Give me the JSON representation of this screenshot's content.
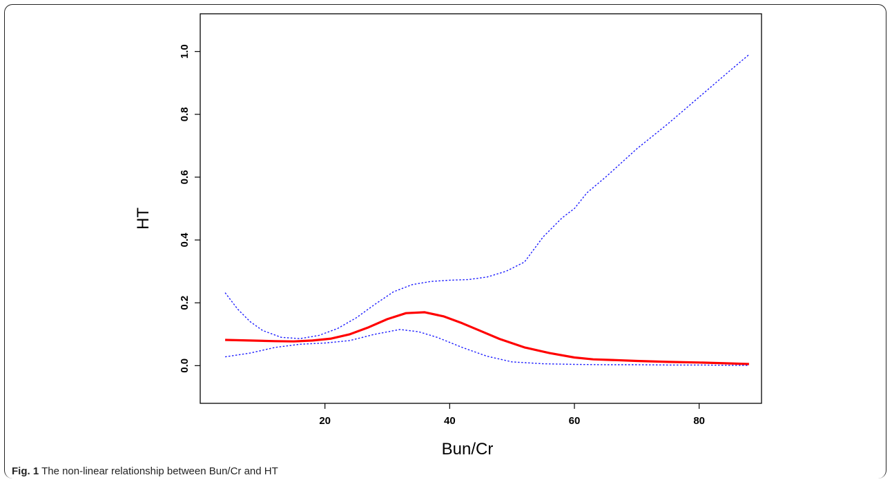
{
  "figure": {
    "caption_label": "Fig. 1",
    "caption_text": "The non-linear relationship between Bun/Cr and HT"
  },
  "chart_data": {
    "type": "line",
    "xlabel": "Bun/Cr",
    "ylabel": "HT",
    "xlim": [
      0,
      90
    ],
    "ylim": [
      -0.12,
      1.12
    ],
    "xticks": [
      20,
      40,
      60,
      80
    ],
    "yticks": [
      0.0,
      0.2,
      0.4,
      0.6,
      0.8,
      1.0
    ],
    "grid": false,
    "series": [
      {
        "color": "#ff0000",
        "style": "solid",
        "x": [
          4,
          8,
          12,
          15,
          18,
          21,
          24,
          27,
          30,
          33,
          36,
          39,
          42,
          45,
          48,
          52,
          56,
          60,
          63,
          66,
          70,
          75,
          80,
          85,
          88
        ],
        "y": [
          0.082,
          0.08,
          0.078,
          0.077,
          0.08,
          0.086,
          0.1,
          0.122,
          0.148,
          0.167,
          0.17,
          0.157,
          0.135,
          0.11,
          0.085,
          0.058,
          0.04,
          0.026,
          0.02,
          0.018,
          0.015,
          0.012,
          0.01,
          0.007,
          0.005
        ]
      },
      {
        "color": "#1a1aff",
        "style": "dotted",
        "x": [
          4,
          6,
          8,
          10,
          13,
          16,
          19,
          22,
          25,
          28,
          31,
          34,
          37,
          40,
          43,
          46,
          49,
          52,
          55,
          58,
          60,
          62,
          65,
          70,
          75,
          80,
          85,
          88
        ],
        "y": [
          0.232,
          0.18,
          0.14,
          0.112,
          0.09,
          0.086,
          0.096,
          0.118,
          0.152,
          0.195,
          0.235,
          0.258,
          0.268,
          0.272,
          0.274,
          0.282,
          0.3,
          0.33,
          0.41,
          0.47,
          0.5,
          0.55,
          0.6,
          0.69,
          0.77,
          0.855,
          0.94,
          0.99
        ]
      },
      {
        "color": "#1a1aff",
        "style": "dotted",
        "x": [
          4,
          8,
          12,
          16,
          20,
          24,
          28,
          32,
          35,
          38,
          42,
          46,
          50,
          55,
          60,
          65,
          70,
          75,
          80,
          85,
          88
        ],
        "y": [
          0.028,
          0.04,
          0.058,
          0.068,
          0.072,
          0.08,
          0.1,
          0.115,
          0.108,
          0.09,
          0.058,
          0.03,
          0.012,
          0.006,
          0.004,
          0.003,
          0.003,
          0.002,
          0.002,
          0.001,
          0.001
        ]
      }
    ]
  }
}
